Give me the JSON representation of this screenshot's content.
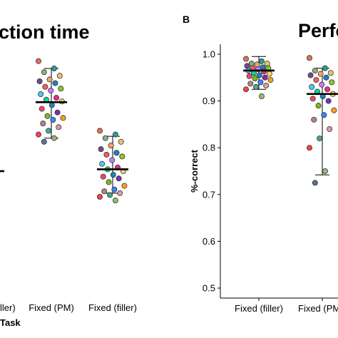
{
  "chart_data": [
    {
      "type": "scatter",
      "title": "ction time",
      "xlabel": "Task",
      "categories": [
        "ller)",
        "Fixed (PM)",
        "Fixed (filler)"
      ],
      "series": [
        {
          "category": "Fixed (PM)",
          "values": [
            1150,
            1130,
            1120,
            1110,
            1100,
            1095,
            1090,
            1080,
            1075,
            1070,
            1060,
            1050,
            1045,
            1040,
            1030,
            1020,
            1010,
            1000,
            995,
            990,
            980,
            970,
            960,
            950,
            940,
            930
          ],
          "mean": 1038,
          "err_low": 940,
          "err_high": 1130
        },
        {
          "category": "Fixed (filler)",
          "values": [
            960,
            950,
            940,
            930,
            920,
            910,
            900,
            895,
            890,
            880,
            870,
            860,
            855,
            850,
            840,
            835,
            830,
            820,
            810,
            800,
            795,
            790,
            785,
            780,
            770
          ],
          "mean": 855,
          "err_low": 790,
          "err_high": 945
        }
      ],
      "ylim": [
        500,
        1200
      ],
      "partial_mean_first": 850
    },
    {
      "type": "scatter",
      "title": "Perfo",
      "panel_label": "B",
      "ylabel": "%-correct",
      "categories": [
        "Fixed (filler)",
        "Fixed (PM"
      ],
      "yticks": [
        "0.5",
        "0.6",
        "0.7",
        "0.8",
        "0.9",
        "1.0"
      ],
      "ylim": [
        0.48,
        1.02
      ],
      "series": [
        {
          "category": "Fixed (filler)",
          "values": [
            0.99,
            0.985,
            0.98,
            0.98,
            0.978,
            0.975,
            0.972,
            0.97,
            0.97,
            0.968,
            0.965,
            0.963,
            0.96,
            0.958,
            0.955,
            0.953,
            0.95,
            0.948,
            0.945,
            0.94,
            0.937,
            0.933,
            0.93,
            0.925,
            0.91
          ],
          "mean": 0.965,
          "err_low": 0.925,
          "err_high": 0.995
        },
        {
          "category": "Fixed (PM",
          "values": [
            0.992,
            0.97,
            0.965,
            0.96,
            0.958,
            0.955,
            0.95,
            0.945,
            0.94,
            0.935,
            0.93,
            0.925,
            0.92,
            0.915,
            0.91,
            0.905,
            0.9,
            0.89,
            0.88,
            0.87,
            0.86,
            0.84,
            0.82,
            0.8,
            0.75,
            0.725
          ],
          "mean": 0.915,
          "err_low": 0.742,
          "err_high": 0.97
        }
      ]
    }
  ]
}
